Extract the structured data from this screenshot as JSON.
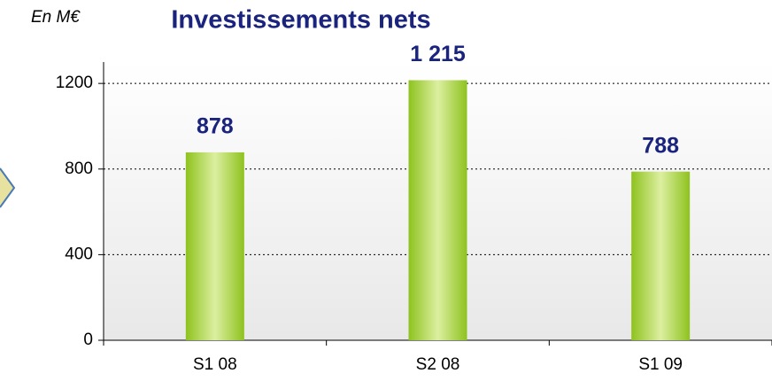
{
  "chart_data": {
    "type": "bar",
    "title": "Investissements nets",
    "unit_label": "En M€",
    "categories": [
      "S1 08",
      "S2 08",
      "S1 09"
    ],
    "values": [
      878,
      1215,
      788
    ],
    "value_labels": [
      "878",
      "1 215",
      "788"
    ],
    "color": "#8ec21e",
    "ylim": [
      0,
      1300
    ],
    "yticks": [
      0,
      400,
      800,
      1200
    ],
    "grid": true
  }
}
